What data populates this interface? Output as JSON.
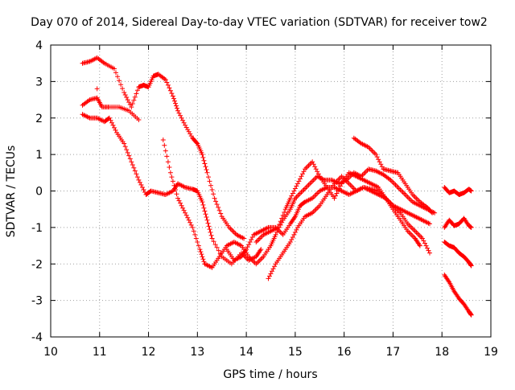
{
  "chart_data": {
    "type": "scatter",
    "title": "Day 070 of 2014, Sidereal Day-to-day VTEC variation (SDTVAR) for receiver tow2",
    "xlabel": "GPS time / hours",
    "ylabel": "SDTVAR / TECUs",
    "xlim": [
      10,
      19
    ],
    "ylim": [
      -4,
      4
    ],
    "grid": true,
    "marker": "+",
    "x_ticks": [
      "10",
      "11",
      "12",
      "13",
      "14",
      "15",
      "16",
      "17",
      "18",
      "19"
    ],
    "y_ticks": [
      "-4",
      "-3",
      "-2",
      "-1",
      "0",
      "1",
      "2",
      "3",
      "4"
    ],
    "series": [
      {
        "name": "track-1",
        "color": "#ff0000",
        "x": [
          10.65,
          10.8,
          10.95,
          11.1,
          11.3,
          11.5,
          11.65,
          11.8,
          11.9,
          12.0,
          12.1,
          12.2,
          12.35,
          12.5,
          12.6,
          12.75,
          12.9,
          13.0,
          13.1,
          13.2,
          13.35,
          13.5,
          13.65,
          13.8,
          13.95
        ],
        "y": [
          3.5,
          3.55,
          3.65,
          3.5,
          3.35,
          2.7,
          2.3,
          2.85,
          2.9,
          2.85,
          3.15,
          3.2,
          3.05,
          2.6,
          2.2,
          1.8,
          1.45,
          1.3,
          1.0,
          0.5,
          -0.2,
          -0.7,
          -1.0,
          -1.2,
          -1.3
        ]
      },
      {
        "name": "track-2",
        "color": "#ff0000",
        "x": [
          10.65,
          10.8,
          10.95,
          11.05,
          11.2,
          11.4,
          11.6,
          11.8
        ],
        "y": [
          2.35,
          2.5,
          2.55,
          2.3,
          2.3,
          2.3,
          2.2,
          1.95
        ]
      },
      {
        "name": "track-3",
        "color": "#ff0000",
        "x": [
          10.65,
          10.8,
          10.95,
          11.1,
          11.2,
          11.35,
          11.5,
          11.65,
          11.8,
          11.95,
          12.05,
          12.2,
          12.35,
          12.5,
          12.6,
          12.75,
          12.9,
          13.0,
          13.1,
          13.2,
          13.3,
          13.5,
          13.7,
          13.9,
          14.05,
          14.2,
          14.3
        ],
        "y": [
          2.1,
          2.0,
          2.0,
          1.9,
          2.0,
          1.6,
          1.3,
          0.8,
          0.3,
          -0.1,
          0.0,
          -0.05,
          -0.1,
          0.0,
          0.2,
          0.1,
          0.05,
          0.0,
          -0.3,
          -0.8,
          -1.3,
          -1.8,
          -2.0,
          -1.7,
          -1.9,
          -1.8,
          -1.6
        ]
      },
      {
        "name": "track-4",
        "color": "#ff0000",
        "x": [
          12.3,
          12.45,
          12.6,
          12.75,
          12.9,
          13.05,
          13.15,
          13.3,
          13.45,
          13.6,
          13.75,
          13.9,
          14.05,
          14.2,
          14.35,
          14.5,
          14.6,
          14.75,
          14.9,
          15.0,
          15.15,
          15.3,
          15.45,
          15.6,
          15.75,
          15.9,
          16.05,
          16.2,
          16.35,
          16.5,
          16.65,
          16.8,
          16.95,
          17.1,
          17.25,
          17.4,
          17.55,
          17.7,
          17.85
        ],
        "y": [
          1.4,
          0.5,
          -0.2,
          -0.6,
          -1.0,
          -1.6,
          -2.0,
          -2.1,
          -1.8,
          -1.5,
          -1.4,
          -1.5,
          -1.8,
          -2.0,
          -1.8,
          -1.5,
          -1.2,
          -0.8,
          -0.5,
          -0.2,
          0.0,
          0.2,
          0.4,
          0.3,
          0.3,
          0.2,
          0.3,
          0.5,
          0.4,
          0.6,
          0.55,
          0.45,
          0.3,
          0.1,
          -0.1,
          -0.3,
          -0.4,
          -0.5,
          -0.6
        ]
      },
      {
        "name": "track-5",
        "color": "#ff0000",
        "x": [
          13.6,
          13.75,
          13.9,
          14.0,
          14.15,
          14.3,
          14.45,
          14.6,
          14.75,
          14.9,
          15.0,
          15.1,
          15.2,
          15.35,
          15.5,
          15.65,
          15.8,
          15.95,
          16.1,
          16.25,
          16.4,
          16.55,
          16.7,
          16.85,
          17.0,
          17.15,
          17.3,
          17.45,
          17.6,
          17.75
        ],
        "y": [
          -1.6,
          -1.9,
          -1.8,
          -1.6,
          -1.2,
          -1.1,
          -1.0,
          -1.0,
          -1.2,
          -0.9,
          -0.7,
          -0.4,
          -0.3,
          -0.2,
          0.0,
          0.1,
          0.1,
          0.0,
          -0.1,
          0.0,
          0.1,
          0.05,
          0.0,
          -0.2,
          -0.4,
          -0.5,
          -0.6,
          -0.7,
          -0.8,
          -0.9
        ]
      },
      {
        "name": "track-6",
        "color": "#ff0000",
        "x": [
          14.2,
          14.35,
          14.5,
          14.65,
          14.8,
          14.9,
          15.05,
          15.2,
          15.35,
          15.5,
          15.65,
          15.8,
          15.95,
          16.1,
          16.25,
          16.4,
          16.55,
          16.7,
          16.85,
          17.0,
          17.15,
          17.3,
          17.45,
          17.55
        ],
        "y": [
          -1.4,
          -1.2,
          -1.1,
          -1.0,
          -0.5,
          -0.2,
          0.2,
          0.6,
          0.8,
          0.4,
          0.1,
          -0.2,
          0.2,
          0.5,
          0.4,
          0.3,
          0.2,
          0.1,
          -0.2,
          -0.5,
          -0.8,
          -1.1,
          -1.3,
          -1.5
        ]
      },
      {
        "name": "track-7",
        "color": "#ff0000",
        "x": [
          14.45,
          14.6,
          14.75,
          14.9,
          15.05,
          15.2,
          15.35,
          15.5,
          15.65,
          15.8,
          15.95,
          16.1,
          16.25,
          16.4,
          16.55,
          16.7,
          16.85,
          17.0,
          17.15,
          17.3,
          17.45,
          17.6,
          17.75
        ],
        "y": [
          -2.4,
          -2.0,
          -1.7,
          -1.4,
          -1.0,
          -0.7,
          -0.6,
          -0.4,
          -0.1,
          0.2,
          0.4,
          0.2,
          0.0,
          0.1,
          0.0,
          -0.1,
          -0.2,
          -0.4,
          -0.6,
          -0.9,
          -1.1,
          -1.3,
          -1.7
        ]
      },
      {
        "name": "track-8",
        "color": "#ff0000",
        "x": [
          16.2,
          16.35,
          16.5,
          16.65,
          16.8,
          16.95,
          17.1,
          17.25,
          17.4,
          17.55,
          17.7,
          17.8
        ],
        "y": [
          1.45,
          1.3,
          1.2,
          1.0,
          0.6,
          0.55,
          0.5,
          0.2,
          -0.1,
          -0.3,
          -0.45,
          -0.6
        ]
      },
      {
        "name": "track-9",
        "color": "#ff0000",
        "x": [
          18.05,
          18.15,
          18.25,
          18.35,
          18.45,
          18.55,
          18.6
        ],
        "y": [
          0.1,
          -0.05,
          0.0,
          -0.1,
          -0.05,
          0.05,
          0.0
        ]
      },
      {
        "name": "track-10",
        "color": "#ff0000",
        "x": [
          18.05,
          18.15,
          18.25,
          18.35,
          18.45,
          18.55,
          18.6
        ],
        "y": [
          -1.0,
          -0.8,
          -0.95,
          -0.9,
          -0.75,
          -0.95,
          -1.0
        ]
      },
      {
        "name": "track-11",
        "color": "#ff0000",
        "x": [
          18.05,
          18.15,
          18.25,
          18.35,
          18.45,
          18.55,
          18.6
        ],
        "y": [
          -1.4,
          -1.5,
          -1.55,
          -1.7,
          -1.8,
          -1.95,
          -2.05
        ]
      },
      {
        "name": "track-12",
        "color": "#ff0000",
        "x": [
          18.05,
          18.15,
          18.25,
          18.35,
          18.45,
          18.55,
          18.6
        ],
        "y": [
          -2.3,
          -2.5,
          -2.75,
          -2.95,
          -3.1,
          -3.3,
          -3.4
        ]
      },
      {
        "name": "track-13",
        "color": "#ff0000",
        "x": [
          10.95
        ],
        "y": [
          2.8
        ]
      }
    ]
  }
}
